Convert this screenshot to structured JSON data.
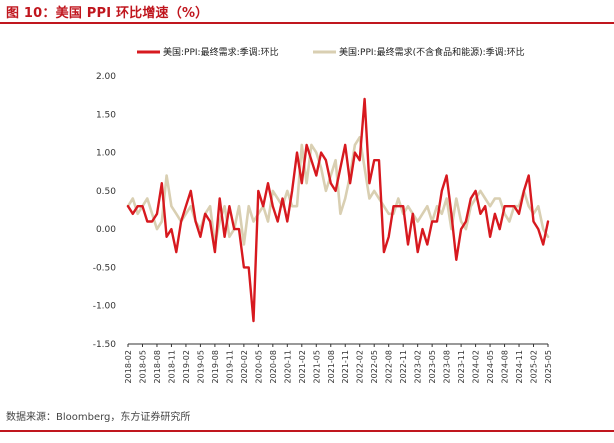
{
  "figure": {
    "title": "图 10：美国 PPI 环比增速（%）",
    "source": "数据来源：Bloomberg，东方证券研究所"
  },
  "colors": {
    "accent": "#c0161e",
    "series_red": "#d7191f",
    "series_beige": "#d9cfb2"
  },
  "chart_data": {
    "type": "line",
    "title": "",
    "xlabel": "",
    "ylabel": "",
    "ylim": [
      -1.5,
      2.0
    ],
    "yticks": [
      2.0,
      1.5,
      1.0,
      0.5,
      0.0,
      -0.5,
      -1.0,
      -1.5
    ],
    "ytick_labels": [
      "2.00",
      "1.50",
      "1.00",
      "0.50",
      "0.00",
      "-0.50",
      "-1.00",
      "-1.50"
    ],
    "grid": false,
    "legend_position": "top",
    "x_start": "2018-02",
    "x_tick_every": 3,
    "x": [
      "2018-02",
      "2018-03",
      "2018-04",
      "2018-05",
      "2018-06",
      "2018-07",
      "2018-08",
      "2018-09",
      "2018-10",
      "2018-11",
      "2018-12",
      "2019-01",
      "2019-02",
      "2019-03",
      "2019-04",
      "2019-05",
      "2019-06",
      "2019-07",
      "2019-08",
      "2019-09",
      "2019-10",
      "2019-11",
      "2019-12",
      "2020-01",
      "2020-02",
      "2020-03",
      "2020-04",
      "2020-05",
      "2020-06",
      "2020-07",
      "2020-08",
      "2020-09",
      "2020-10",
      "2020-11",
      "2020-12",
      "2021-01",
      "2021-02",
      "2021-03",
      "2021-04",
      "2021-05",
      "2021-06",
      "2021-07",
      "2021-08",
      "2021-09",
      "2021-10",
      "2021-11",
      "2021-12",
      "2022-01",
      "2022-02",
      "2022-03",
      "2022-04",
      "2022-05",
      "2022-06",
      "2022-07",
      "2022-08",
      "2022-09",
      "2022-10",
      "2022-11",
      "2022-12",
      "2023-01",
      "2023-02",
      "2023-03",
      "2023-04",
      "2023-05",
      "2023-06",
      "2023-07",
      "2023-08",
      "2023-09",
      "2023-10",
      "2023-11",
      "2023-12",
      "2024-01",
      "2024-02",
      "2024-03",
      "2024-04",
      "2024-05",
      "2024-06",
      "2024-07",
      "2024-08",
      "2024-09",
      "2024-10",
      "2024-11",
      "2024-12",
      "2025-01",
      "2025-02",
      "2025-03",
      "2025-04",
      "2025-05"
    ],
    "xtick_labels": [
      "2018-02",
      "2018-05",
      "2018-08",
      "2018-11",
      "2019-02",
      "2019-05",
      "2019-08",
      "2019-11",
      "2020-02",
      "2020-05",
      "2020-08",
      "2020-11",
      "2021-02",
      "2021-05",
      "2021-08",
      "2021-11",
      "2022-02",
      "2022-05",
      "2022-08",
      "2022-11",
      "2023-02",
      "2023-05",
      "2023-08",
      "2023-11",
      "2024-02",
      "2024-05",
      "2024-08",
      "2024-11",
      "2025-02",
      "2025-05"
    ],
    "series": [
      {
        "name": "美国:PPI:最终需求:季调:环比",
        "color": "#d7191f",
        "values": [
          0.3,
          0.2,
          0.3,
          0.3,
          0.1,
          0.1,
          0.2,
          0.6,
          -0.1,
          0.0,
          -0.3,
          0.1,
          0.3,
          0.5,
          0.1,
          -0.1,
          0.2,
          0.1,
          -0.3,
          0.4,
          -0.1,
          0.3,
          0.0,
          0.0,
          -0.5,
          -0.5,
          -1.2,
          0.5,
          0.3,
          0.6,
          0.3,
          0.1,
          0.4,
          0.1,
          0.5,
          1.0,
          0.6,
          1.1,
          0.9,
          0.7,
          1.0,
          0.9,
          0.6,
          0.5,
          0.8,
          1.1,
          0.6,
          1.0,
          0.9,
          1.7,
          0.6,
          0.9,
          0.9,
          -0.3,
          -0.1,
          0.3,
          0.3,
          0.3,
          -0.2,
          0.2,
          -0.3,
          0.0,
          -0.2,
          0.1,
          0.1,
          0.5,
          0.7,
          0.2,
          -0.4,
          0.0,
          0.1,
          0.4,
          0.5,
          0.2,
          0.3,
          -0.1,
          0.2,
          0.0,
          0.3,
          0.3,
          0.3,
          0.2,
          0.5,
          0.7,
          0.1,
          0.0,
          -0.2,
          0.1
        ]
      },
      {
        "name": "美国:PPI:最终需求(不含食品和能源):季调:环比",
        "color": "#d9cfb2",
        "values": [
          0.3,
          0.4,
          0.2,
          0.3,
          0.4,
          0.2,
          0.0,
          0.1,
          0.7,
          0.3,
          0.2,
          0.1,
          0.2,
          0.3,
          0.1,
          0.0,
          0.2,
          0.3,
          -0.2,
          0.1,
          0.3,
          -0.1,
          0.0,
          0.3,
          -0.2,
          0.3,
          0.1,
          0.2,
          0.3,
          0.1,
          0.5,
          0.4,
          0.3,
          0.5,
          0.3,
          0.3,
          1.1,
          0.6,
          1.1,
          1.0,
          0.8,
          0.5,
          0.7,
          0.9,
          0.2,
          0.4,
          0.7,
          1.1,
          1.2,
          0.8,
          0.4,
          0.5,
          0.4,
          0.3,
          0.2,
          0.2,
          0.4,
          0.2,
          0.3,
          0.2,
          0.1,
          0.2,
          0.3,
          0.1,
          0.3,
          0.2,
          0.4,
          0.0,
          0.4,
          0.1,
          0.0,
          0.3,
          0.4,
          0.5,
          0.4,
          0.3,
          0.4,
          0.4,
          0.2,
          0.1,
          0.3,
          0.3,
          0.5,
          0.3,
          0.2,
          0.3,
          0.0,
          -0.1
        ]
      }
    ]
  }
}
